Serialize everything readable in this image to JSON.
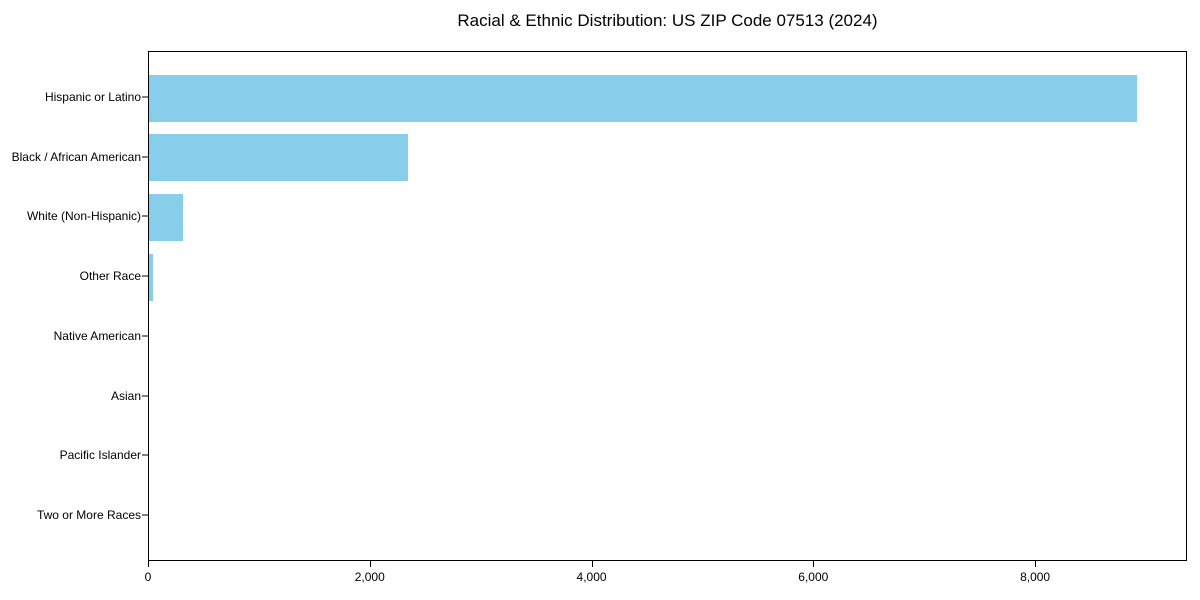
{
  "chart_data": {
    "type": "bar",
    "orientation": "horizontal",
    "title": "Racial & Ethnic Distribution: US ZIP Code 07513 (2024)",
    "categories": [
      "Hispanic or Latino",
      "Black / African American",
      "White (Non-Hispanic)",
      "Other Race",
      "Native American",
      "Asian",
      "Pacific Islander",
      "Two or More Races"
    ],
    "values": [
      8910,
      2335,
      310,
      35,
      0,
      0,
      0,
      0
    ],
    "xlabel": "",
    "ylabel": "",
    "xlim": [
      0,
      9370
    ],
    "x_ticks": [
      0,
      2000,
      4000,
      6000,
      8000
    ],
    "x_tick_labels": [
      "0",
      "2,000",
      "4,000",
      "6,000",
      "8,000"
    ],
    "grid": false,
    "legend": null,
    "colors": {
      "bar": "#87CEEB",
      "text": "#000000",
      "spine": "#000000",
      "background": "#FFFFFF"
    }
  }
}
